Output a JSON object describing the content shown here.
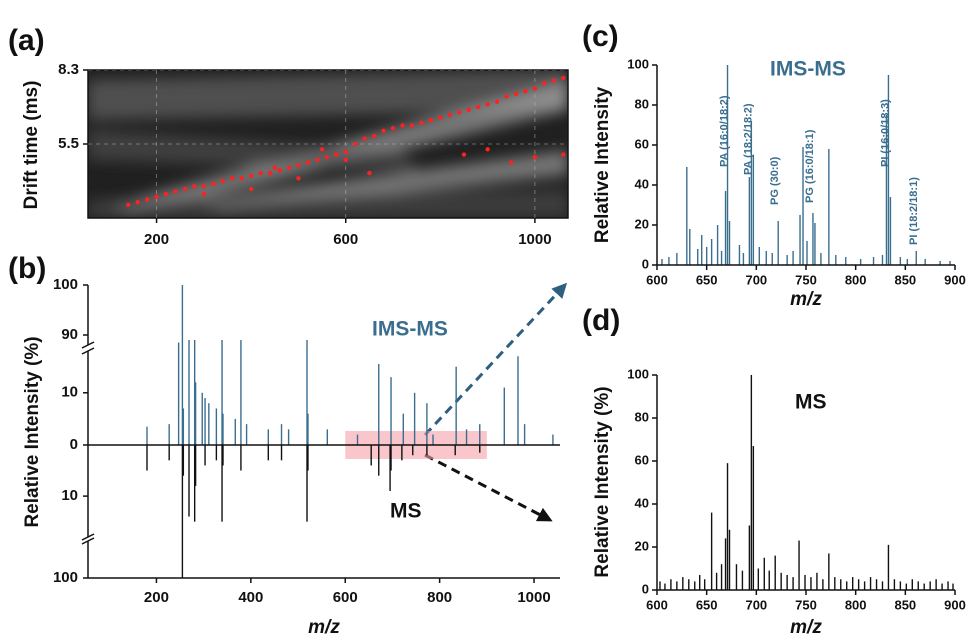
{
  "chart_data": [
    {
      "type": "scatter",
      "panel": "(a)",
      "ylabel": "Drift time (ms)",
      "color": "#ff2020",
      "grid": true,
      "xlim": [
        55,
        1070
      ],
      "ylim": [
        2.7,
        8.3
      ],
      "xticks": [
        200,
        600,
        1000
      ],
      "yticks": [
        5.5,
        8.3
      ],
      "x": [
        140,
        160,
        180,
        200,
        220,
        240,
        260,
        280,
        300,
        320,
        340,
        360,
        380,
        400,
        420,
        440,
        460,
        480,
        500,
        520,
        540,
        560,
        580,
        600,
        620,
        640,
        660,
        680,
        700,
        720,
        740,
        760,
        780,
        800,
        820,
        840,
        860,
        880,
        900,
        920,
        940,
        960,
        980,
        1000,
        1020,
        1040,
        1060,
        850,
        900,
        950,
        1000,
        1060,
        500,
        400,
        600,
        650,
        300,
        450,
        550
      ],
      "y": [
        3.2,
        3.3,
        3.4,
        3.5,
        3.6,
        3.7,
        3.8,
        3.9,
        3.9,
        4.0,
        4.1,
        4.2,
        4.2,
        4.3,
        4.4,
        4.4,
        4.5,
        4.6,
        4.7,
        4.8,
        4.9,
        5.0,
        5.1,
        5.2,
        5.5,
        5.7,
        5.8,
        6.0,
        6.1,
        6.2,
        6.2,
        6.3,
        6.4,
        6.5,
        6.6,
        6.7,
        6.8,
        6.9,
        7.0,
        7.1,
        7.3,
        7.4,
        7.5,
        7.6,
        7.8,
        7.9,
        8.0,
        5.1,
        5.3,
        4.8,
        5.0,
        5.1,
        4.2,
        3.8,
        4.9,
        4.4,
        3.6,
        4.6,
        5.3
      ]
    },
    {
      "type": "mirror",
      "panel": "(b)",
      "ylabel": "Relative Intensity (%)",
      "xlabel": "m/z",
      "xlim": [
        55,
        1055
      ],
      "ylim": [
        -100,
        100
      ],
      "ybreak": [
        18,
        88
      ],
      "highlight": [
        600,
        900
      ],
      "xticks": [
        200,
        400,
        600,
        800,
        1000
      ],
      "yticks": [
        100,
        90,
        10,
        0,
        {
          "value": -10,
          "label": "10"
        },
        {
          "value": -100,
          "label": "100"
        }
      ],
      "series": [
        {
          "name": "IMS-MS",
          "color": "#3a6e8f",
          "x": [
            180,
            227,
            247,
            255,
            257,
            269,
            281,
            283,
            297,
            303,
            311,
            327,
            339,
            341,
            367,
            379,
            391,
            437,
            465,
            480,
            519,
            521,
            562,
            626,
            671,
            697,
            723,
            747,
            773,
            786,
            835,
            857,
            885,
            937,
            966,
            980,
            1040
          ],
          "values": [
            3.5,
            4,
            88.5,
            100,
            7,
            89,
            89,
            12,
            10,
            9,
            8,
            7,
            89,
            6,
            5,
            89,
            4,
            3,
            4,
            3,
            89,
            6,
            3,
            2,
            15.5,
            13,
            6,
            10,
            8,
            2,
            15,
            3,
            4,
            11,
            17,
            4,
            2
          ]
        },
        {
          "name": "MS",
          "color": "#111111",
          "x": [
            180,
            227,
            255,
            257,
            269,
            281,
            283,
            303,
            327,
            339,
            341,
            379,
            437,
            465,
            519,
            521,
            655,
            671,
            695,
            697,
            720,
            743,
            773,
            833,
            885
          ],
          "values": [
            -5,
            -3,
            -100,
            -6,
            -14,
            -15,
            -8,
            -4,
            -3,
            -15,
            -4,
            -5,
            -3,
            -3,
            -15,
            -5,
            -4,
            -6,
            -9,
            -5,
            -3,
            -2,
            -2,
            -2,
            -1.5
          ]
        }
      ]
    },
    {
      "type": "spectrum",
      "panel": "(c)",
      "title": "IMS-MS",
      "ylabel": "Relative Intensity",
      "xlabel": "m/z",
      "color": "#3a6e8f",
      "xlim": [
        600,
        900
      ],
      "ylim": [
        0,
        100
      ],
      "xticks": [
        600,
        650,
        700,
        750,
        800,
        850,
        900
      ],
      "yticks": [
        0,
        20,
        40,
        60,
        80,
        100
      ],
      "x": [
        605,
        612,
        620,
        630,
        633,
        641,
        645,
        650,
        655,
        661,
        665,
        669,
        671,
        673,
        683,
        687,
        693,
        695,
        697,
        703,
        710,
        716,
        722,
        731,
        737,
        744,
        747,
        751,
        757,
        759,
        765,
        773,
        780,
        790,
        805,
        818,
        827,
        831,
        833,
        835,
        845,
        852,
        861,
        870,
        885,
        895
      ],
      "values": [
        3,
        4,
        6,
        49,
        18,
        8,
        15,
        9,
        13,
        20,
        7,
        37,
        100,
        22,
        10,
        6,
        44,
        72,
        55,
        9,
        7,
        6,
        22,
        5,
        7,
        25,
        59,
        12,
        26,
        21,
        6,
        58,
        5,
        4,
        3,
        4,
        5,
        75,
        95,
        34,
        4,
        3,
        7,
        3,
        2,
        2
      ],
      "annotations": [
        {
          "text": "PA (16:0/18:2)",
          "x": 668,
          "y": 49
        },
        {
          "text": "PA (18:2/18:2)",
          "x": 692,
          "y": 45
        },
        {
          "text": "PG (30:0)",
          "x": 719,
          "y": 30
        },
        {
          "text": "PG (16:0/18:1)",
          "x": 754,
          "y": 31
        },
        {
          "text": "PI (16:0/18:3)",
          "x": 830,
          "y": 49
        },
        {
          "text": "PI (18:2/18:1)",
          "x": 859,
          "y": 10
        }
      ]
    },
    {
      "type": "spectrum",
      "panel": "(d)",
      "title": "MS",
      "ylabel": "Relative Intensity (%)",
      "xlabel": "m/z",
      "color": "#111111",
      "xlim": [
        600,
        900
      ],
      "ylim": [
        0,
        100
      ],
      "xticks": [
        600,
        650,
        700,
        750,
        800,
        850,
        900
      ],
      "yticks": [
        0,
        20,
        40,
        60,
        80,
        100
      ],
      "x": [
        603,
        608,
        614,
        620,
        626,
        632,
        638,
        643,
        648,
        655,
        660,
        665,
        669,
        671,
        673,
        680,
        686,
        693,
        695,
        697,
        702,
        708,
        713,
        719,
        725,
        731,
        737,
        743,
        749,
        755,
        761,
        767,
        773,
        779,
        785,
        791,
        797,
        803,
        809,
        815,
        821,
        827,
        833,
        839,
        845,
        851,
        857,
        863,
        869,
        875,
        881,
        887,
        893,
        898
      ],
      "values": [
        4,
        3,
        5,
        4,
        6,
        5,
        4,
        7,
        5,
        36,
        8,
        12,
        24,
        59,
        28,
        12,
        9,
        30,
        100,
        67,
        10,
        15,
        9,
        16,
        8,
        7,
        6,
        23,
        7,
        6,
        8,
        5,
        17,
        6,
        5,
        4,
        6,
        5,
        4,
        6,
        5,
        4,
        21,
        5,
        4,
        3,
        5,
        4,
        3,
        4,
        5,
        3,
        4,
        3
      ]
    }
  ]
}
